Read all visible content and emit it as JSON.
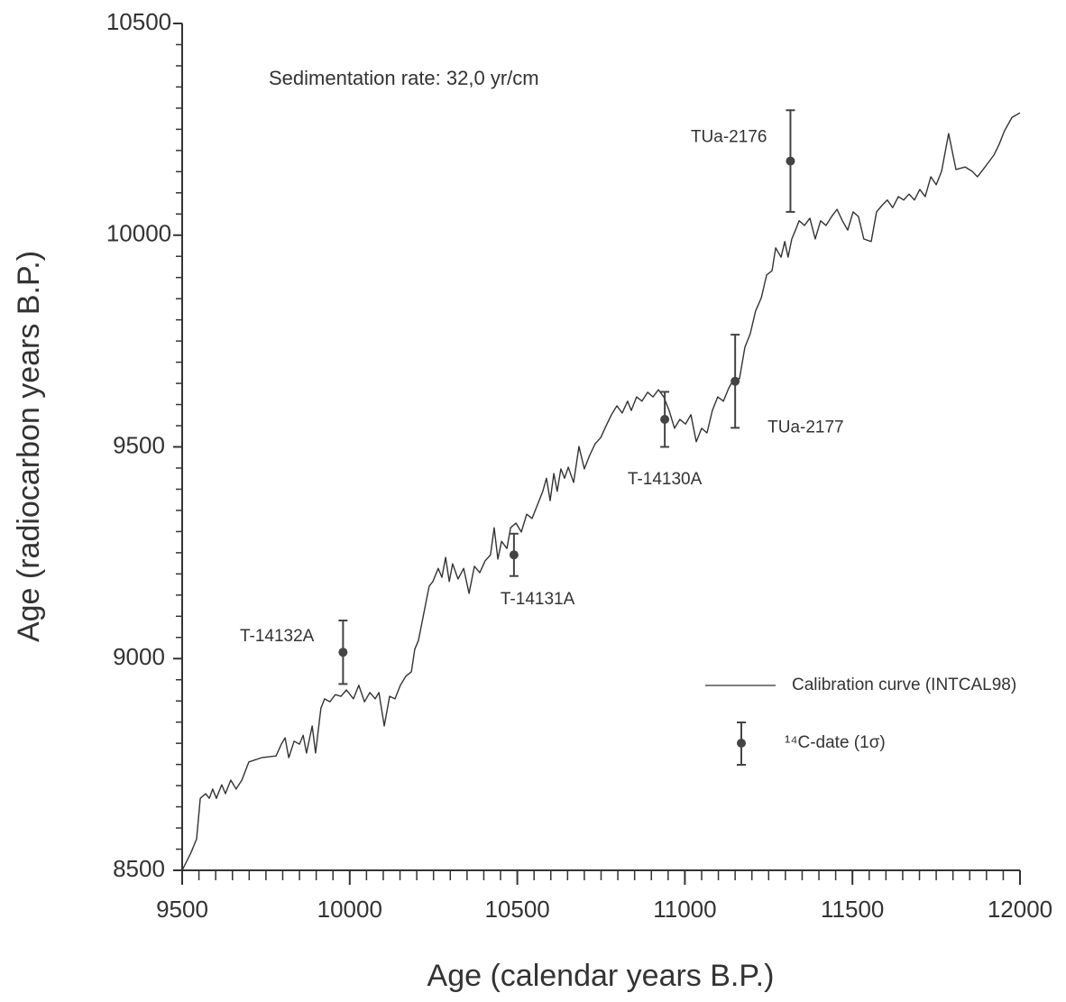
{
  "chart_data": {
    "type": "line",
    "annotation": "Sedimentation rate: 32,0 yr/cm",
    "xlabel": "Age (calendar years B.P.)",
    "ylabel": "Age (radiocarbon years B.P.)",
    "xlim": [
      9500,
      12000
    ],
    "ylim": [
      8500,
      10500
    ],
    "xticks": [
      9500,
      10000,
      10500,
      11000,
      11500,
      12000
    ],
    "yticks": [
      8500,
      9000,
      9500,
      10000,
      10500
    ],
    "xticks_minor": [
      9550,
      9600,
      9650,
      9700,
      9750,
      9800,
      9850,
      9900,
      9950,
      10050,
      10100,
      10150,
      10200,
      10250,
      10300,
      10350,
      10400,
      10450,
      10550,
      10600,
      10650,
      10700,
      10750,
      10800,
      10850,
      10900,
      10950,
      11050,
      11100,
      11150,
      11200,
      11250,
      11300,
      11350,
      11400,
      11450,
      11550,
      11600,
      11650,
      11700,
      11750,
      11800,
      11850,
      11900,
      11950
    ],
    "yticks_minor": [
      8550,
      8600,
      8650,
      8700,
      8750,
      8800,
      8850,
      8900,
      8950,
      9050,
      9100,
      9150,
      9200,
      9250,
      9300,
      9350,
      9400,
      9450,
      9550,
      9600,
      9650,
      9700,
      9750,
      9800,
      9850,
      9900,
      9950,
      10050,
      10100,
      10150,
      10200,
      10250,
      10300,
      10350,
      10400,
      10450
    ],
    "series": [
      {
        "name": "Calibration curve (INTCAL98)",
        "color": "#333333",
        "x": [
          9500,
          9527,
          9543,
          9554,
          9570,
          9581,
          9591,
          9602,
          9618,
          9629,
          9645,
          9661,
          9678,
          9699,
          9737,
          9780,
          9796,
          9807,
          9818,
          9834,
          9850,
          9861,
          9871,
          9888,
          9898,
          9914,
          9925,
          9941,
          9957,
          9974,
          9990,
          10011,
          10027,
          10044,
          10060,
          10076,
          10087,
          10103,
          10119,
          10135,
          10151,
          10167,
          10184,
          10194,
          10205,
          10221,
          10237,
          10248,
          10264,
          10275,
          10286,
          10297,
          10307,
          10323,
          10340,
          10356,
          10372,
          10388,
          10404,
          10420,
          10431,
          10442,
          10453,
          10469,
          10480,
          10496,
          10512,
          10528,
          10544,
          10560,
          10576,
          10587,
          10598,
          10609,
          10619,
          10630,
          10641,
          10652,
          10668,
          10684,
          10700,
          10716,
          10732,
          10749,
          10765,
          10781,
          10797,
          10813,
          10829,
          10840,
          10856,
          10872,
          10889,
          10905,
          10921,
          10937,
          10953,
          10969,
          10985,
          11002,
          11018,
          11034,
          11050,
          11066,
          11082,
          11098,
          11115,
          11131,
          11147,
          11163,
          11179,
          11195,
          11211,
          11228,
          11244,
          11260,
          11271,
          11287,
          11298,
          11308,
          11319,
          11330,
          11341,
          11357,
          11373,
          11389,
          11405,
          11421,
          11438,
          11454,
          11470,
          11486,
          11502,
          11518,
          11534,
          11556,
          11572,
          11588,
          11604,
          11620,
          11637,
          11653,
          11669,
          11685,
          11701,
          11717,
          11734,
          11750,
          11766,
          11787,
          11809,
          11836,
          11857,
          11873,
          11890,
          11906,
          11922,
          11938,
          11954,
          11976,
          12000
        ],
        "values": [
          8500,
          8543,
          8574,
          8670,
          8681,
          8670,
          8692,
          8670,
          8702,
          8681,
          8713,
          8692,
          8713,
          8756,
          8766,
          8770,
          8798,
          8813,
          8766,
          8805,
          8798,
          8819,
          8777,
          8841,
          8777,
          8883,
          8905,
          8898,
          8915,
          8911,
          8926,
          8905,
          8937,
          8898,
          8920,
          8905,
          8920,
          8841,
          8911,
          8905,
          8937,
          8958,
          8969,
          9022,
          9043,
          9107,
          9171,
          9182,
          9213,
          9192,
          9239,
          9182,
          9224,
          9188,
          9213,
          9154,
          9218,
          9203,
          9231,
          9245,
          9309,
          9235,
          9277,
          9260,
          9309,
          9320,
          9299,
          9341,
          9331,
          9363,
          9395,
          9426,
          9373,
          9437,
          9395,
          9448,
          9426,
          9452,
          9416,
          9501,
          9448,
          9480,
          9507,
          9522,
          9550,
          9576,
          9597,
          9580,
          9608,
          9586,
          9618,
          9608,
          9629,
          9618,
          9635,
          9618,
          9586,
          9544,
          9565,
          9554,
          9576,
          9512,
          9544,
          9533,
          9586,
          9618,
          9608,
          9639,
          9661,
          9661,
          9735,
          9767,
          9821,
          9852,
          9906,
          9916,
          9970,
          9948,
          9985,
          9948,
          9991,
          10012,
          10034,
          10023,
          10040,
          9991,
          10034,
          10023,
          10044,
          10061,
          10034,
          10012,
          10055,
          10044,
          9991,
          9985,
          10055,
          10070,
          10083,
          10065,
          10091,
          10083,
          10097,
          10083,
          10108,
          10091,
          10138,
          10119,
          10151,
          10240,
          10155,
          10161,
          10151,
          10138,
          10155,
          10172,
          10189,
          10215,
          10247,
          10278,
          10289
        ]
      },
      {
        "name": "¹⁴C-date (1σ)",
        "color": "#444444",
        "labels": [
          "T-14132A",
          "T-14131A",
          "T-14130A",
          "TUa-2177",
          "TUa-2176"
        ],
        "x": [
          9980,
          10490,
          10940,
          11150,
          11315
        ],
        "values": [
          9015,
          9245,
          9565,
          9655,
          10175
        ],
        "errors": [
          75,
          50,
          65,
          110,
          120
        ]
      }
    ]
  }
}
